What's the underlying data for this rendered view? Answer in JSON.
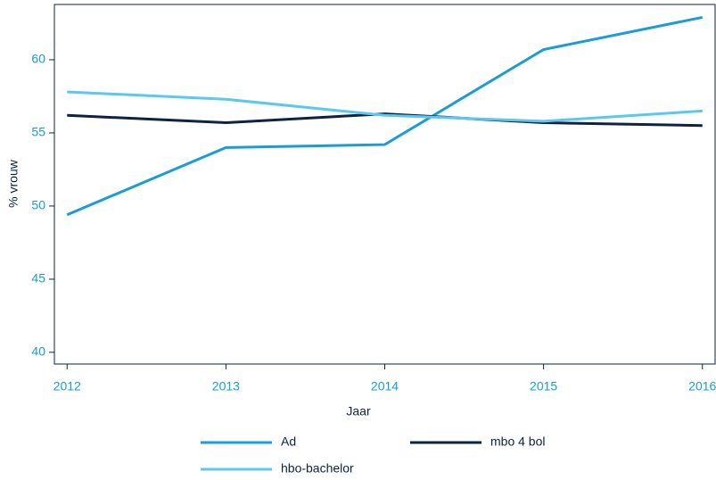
{
  "chart_data": {
    "type": "line",
    "x_label": "Jaar",
    "y_label": "% vrouw",
    "x": [
      2012,
      2013,
      2014,
      2015,
      2016
    ],
    "series": [
      {
        "name": "Ad",
        "color": "#1a9cd4",
        "values": [
          49.4,
          54.0,
          54.2,
          60.7,
          62.9
        ]
      },
      {
        "name": "mbo 4 bol",
        "color": "#0d2340",
        "values": [
          56.2,
          55.7,
          56.3,
          55.7,
          55.5
        ]
      },
      {
        "name": "hbo-bachelor",
        "color": "#5bc8f0",
        "values": [
          57.8,
          57.3,
          56.2,
          55.8,
          56.5
        ]
      }
    ],
    "xlim": [
      2011.92,
      2016.08
    ],
    "xticks": [
      2012,
      2013,
      2014,
      2015,
      2016
    ],
    "ylim": [
      39.2,
      63.78
    ],
    "yticks": [
      40,
      45,
      50,
      55,
      60
    ],
    "grid": false,
    "legend": "bottom"
  }
}
